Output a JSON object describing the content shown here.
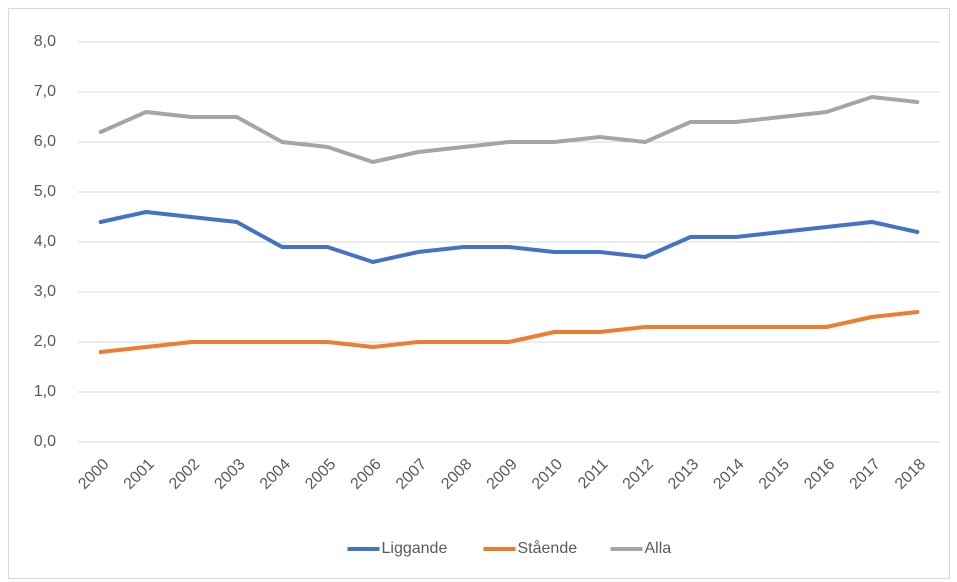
{
  "chart_data": {
    "type": "line",
    "categories": [
      "2000",
      "2001",
      "2002",
      "2003",
      "2004",
      "2005",
      "2006",
      "2007",
      "2008",
      "2009",
      "2010",
      "2011",
      "2012",
      "2013",
      "2014",
      "2015",
      "2016",
      "2017",
      "2018"
    ],
    "series": [
      {
        "name": "Liggande",
        "color": "#4472c4",
        "values": [
          4.4,
          4.6,
          4.5,
          4.4,
          3.9,
          3.9,
          3.6,
          3.8,
          3.9,
          3.9,
          3.8,
          3.8,
          3.7,
          4.1,
          4.1,
          4.2,
          4.3,
          4.4,
          4.2
        ]
      },
      {
        "name": "Stående",
        "color": "#ed7d31",
        "values": [
          1.8,
          1.9,
          2.0,
          2.0,
          2.0,
          2.0,
          1.9,
          2.0,
          2.0,
          2.0,
          2.2,
          2.2,
          2.3,
          2.3,
          2.3,
          2.3,
          2.3,
          2.5,
          2.6
        ]
      },
      {
        "name": "Alla",
        "color": "#a5a5a5",
        "values": [
          6.2,
          6.6,
          6.5,
          6.5,
          6.0,
          5.9,
          5.6,
          5.8,
          5.9,
          6.0,
          6.0,
          6.1,
          6.0,
          6.4,
          6.4,
          6.5,
          6.6,
          6.9,
          6.8
        ]
      }
    ],
    "ylim": [
      0,
      8
    ],
    "yticks": [
      {
        "value": 0,
        "label": "0,0"
      },
      {
        "value": 1,
        "label": "1,0"
      },
      {
        "value": 2,
        "label": "2,0"
      },
      {
        "value": 3,
        "label": "3,0"
      },
      {
        "value": 4,
        "label": "4,0"
      },
      {
        "value": 5,
        "label": "5,0"
      },
      {
        "value": 6,
        "label": "6,0"
      },
      {
        "value": 7,
        "label": "7,0"
      },
      {
        "value": 8,
        "label": "8,0"
      }
    ],
    "grid": true,
    "legend": "bottom"
  }
}
